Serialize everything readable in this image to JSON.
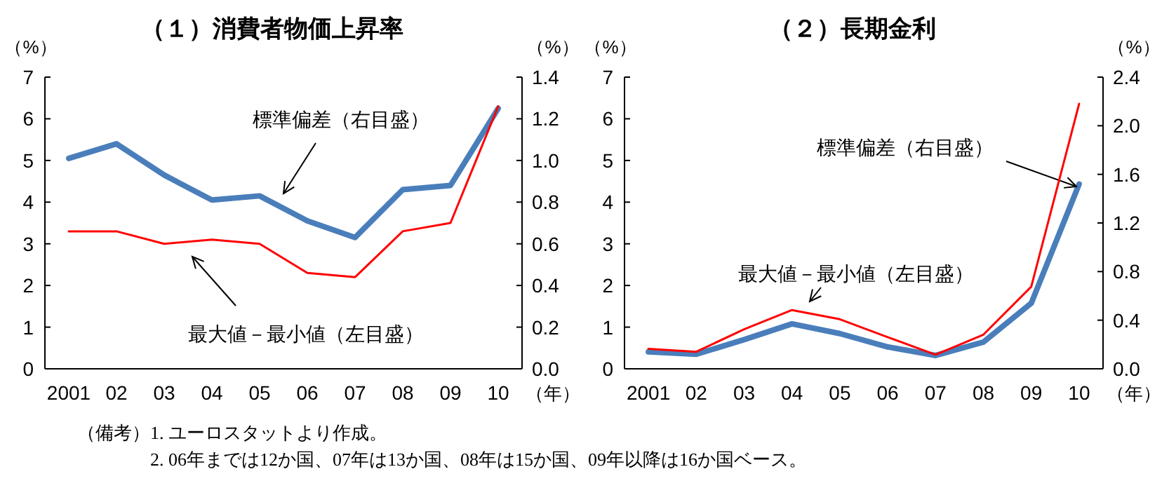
{
  "chart_data": [
    {
      "type": "line",
      "title": "（１）消費者物価上昇率",
      "xlabel": "（年）",
      "ylabel": "（%）",
      "y2label": "（%）",
      "categories": [
        "2001",
        "02",
        "03",
        "04",
        "05",
        "06",
        "07",
        "08",
        "09",
        "10"
      ],
      "ylim": [
        0,
        7
      ],
      "yticks": [
        0,
        1,
        2,
        3,
        4,
        5,
        6,
        7
      ],
      "y2lim": [
        0,
        1.4
      ],
      "y2ticks": [
        {
          "value": 0,
          "label": "0.0"
        },
        {
          "value": 0.2,
          "label": "0.2"
        },
        {
          "value": 0.4,
          "label": "0.4"
        },
        {
          "value": 0.6,
          "label": "0.6"
        },
        {
          "value": 0.8,
          "label": "0.8"
        },
        {
          "value": 1,
          "label": "1.0"
        },
        {
          "value": 1.2,
          "label": "1.2"
        },
        {
          "value": 1.4,
          "label": "1.4"
        }
      ],
      "series": [
        {
          "name": "最大値－最小値（左目盛）",
          "color": "#ff0000",
          "values": [
            3.3,
            3.3,
            3.0,
            3.1,
            3.0,
            2.3,
            2.2,
            3.3,
            3.5,
            6.3
          ]
        },
        {
          "name": "標準偏差（右目盛）",
          "color": "#4a7ebb",
          "axis": "y2",
          "values": [
            1.01,
            1.08,
            0.93,
            0.81,
            0.83,
            0.71,
            0.63,
            0.86,
            0.88,
            1.25
          ]
        }
      ]
    },
    {
      "type": "line",
      "title": "（２）長期金利",
      "xlabel": "（年）",
      "ylabel": "（%）",
      "y2label": "（%）",
      "categories": [
        "2001",
        "02",
        "03",
        "04",
        "05",
        "06",
        "07",
        "08",
        "09",
        "10"
      ],
      "ylim": [
        0,
        7
      ],
      "yticks": [
        0,
        1,
        2,
        3,
        4,
        5,
        6,
        7
      ],
      "y2lim": [
        0,
        2.4
      ],
      "y2ticks": [
        {
          "value": 0,
          "label": "0.0"
        },
        {
          "value": 0.4,
          "label": "0.4"
        },
        {
          "value": 0.8,
          "label": "0.8"
        },
        {
          "value": 1.2,
          "label": "1.2"
        },
        {
          "value": 1.6,
          "label": "1.6"
        },
        {
          "value": 2,
          "label": "2.0"
        },
        {
          "value": 2.4,
          "label": "2.4"
        }
      ],
      "series": [
        {
          "name": "最大値－最小値（左目盛）",
          "color": "#ff0000",
          "values": [
            0.48,
            0.41,
            0.95,
            1.41,
            1.19,
            0.76,
            0.34,
            0.82,
            1.97,
            6.36
          ]
        },
        {
          "name": "標準偏差（右目盛）",
          "color": "#4a7ebb",
          "axis": "y2",
          "values": [
            0.14,
            0.12,
            0.24,
            0.37,
            0.29,
            0.18,
            0.11,
            0.22,
            0.54,
            1.52
          ]
        }
      ]
    },
    {
      "type": "other",
      "annotations": [
        "（備考）",
        "1. ユーロスタットより作成。",
        "2. 06年までは12か国、07年は13か国、08年は15か国、09年以降は16か国ベース。"
      ]
    }
  ]
}
